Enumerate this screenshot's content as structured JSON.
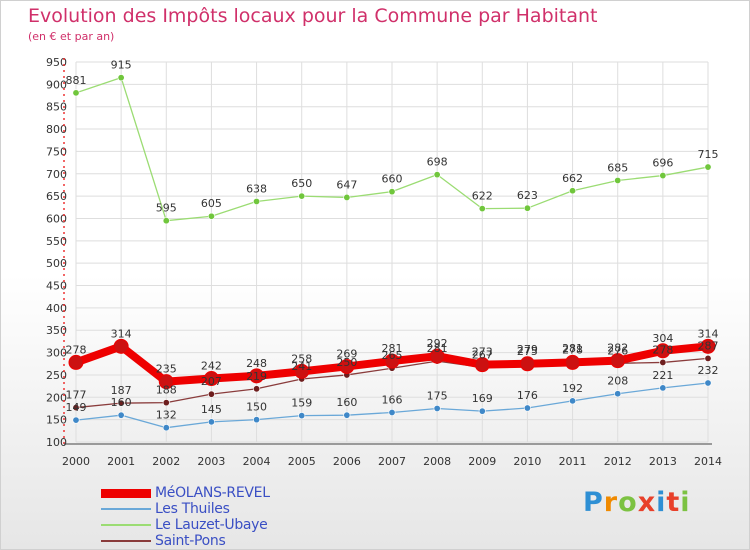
{
  "header": {
    "title": "Evolution des Impôts locaux pour la Commune par Habitant",
    "subtitle": "(en € et par an)"
  },
  "logo": {
    "text": "Proxiti",
    "colors": [
      "#2e8fd4",
      "#f08a00",
      "#7cc242",
      "#e8402a",
      "#2e8fd4",
      "#e8402a",
      "#7cc242"
    ]
  },
  "chart_data": {
    "type": "line",
    "x": [
      2000,
      2001,
      2002,
      2003,
      2004,
      2005,
      2006,
      2007,
      2008,
      2009,
      2010,
      2011,
      2012,
      2013,
      2014
    ],
    "ylim": [
      100,
      950
    ],
    "yticks": [
      100,
      150,
      200,
      250,
      300,
      350,
      400,
      450,
      500,
      550,
      600,
      650,
      700,
      750,
      800,
      850,
      900,
      950
    ],
    "grid": true,
    "legend_position": "bottom-left",
    "series": [
      {
        "name": "MéOLANS-REVEL",
        "color": "#ee0000",
        "marker_color": "#cc1111",
        "width": "thick",
        "values": [
          278,
          314,
          235,
          242,
          248,
          258,
          269,
          281,
          292,
          273,
          275,
          278,
          282,
          304,
          314
        ]
      },
      {
        "name": "Les Thuiles",
        "color": "#6aa8d8",
        "marker_color": "#3f88c8",
        "width": "thin",
        "values": [
          149,
          160,
          132,
          145,
          150,
          159,
          160,
          166,
          175,
          169,
          176,
          192,
          208,
          221,
          232
        ]
      },
      {
        "name": "Le Lauzet-Ubaye",
        "color": "#9bdc73",
        "marker_color": "#70c63c",
        "width": "thin",
        "values": [
          881,
          915,
          595,
          605,
          638,
          650,
          647,
          660,
          698,
          622,
          623,
          662,
          685,
          696,
          715
        ]
      },
      {
        "name": "Saint-Pons",
        "color": "#8a3c3c",
        "marker_color": "#6e1e1e",
        "width": "thin",
        "values": [
          177,
          187,
          188,
          207,
          219,
          241,
          250,
          265,
          281,
          267,
          279,
          281,
          276,
          278,
          287
        ]
      }
    ]
  }
}
